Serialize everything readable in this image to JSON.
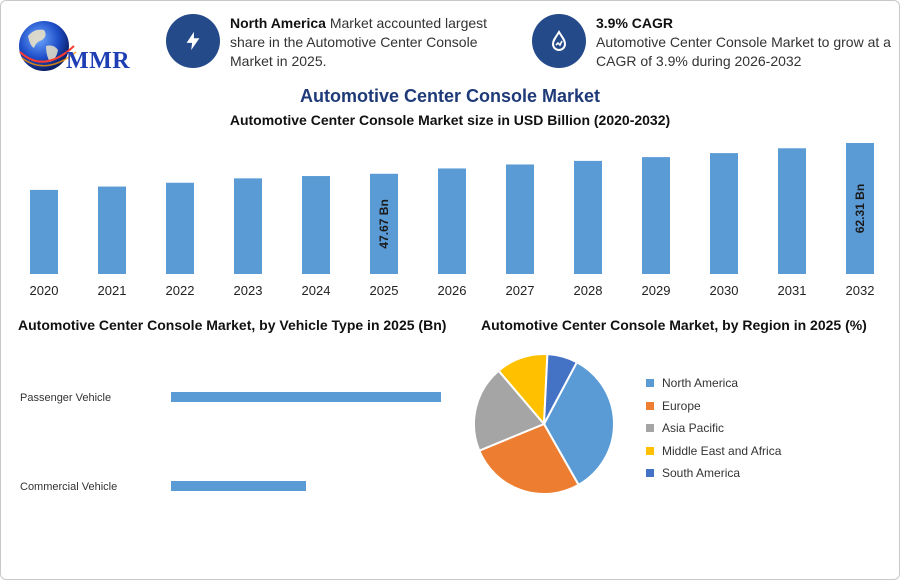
{
  "logo": {
    "text": "MMR"
  },
  "info_cards": [
    {
      "icon": "lightning-icon",
      "bold": "North America",
      "text": " Market accounted largest share in the Automotive Center Console Market in 2025."
    },
    {
      "icon": "growth-drop-icon",
      "bold": "3.9% CAGR",
      "text": "Automotive Center Console Market to grow at a CAGR of 3.9% during 2026-2032"
    }
  ],
  "colors": {
    "bar": "#5b9bd5",
    "icon_bg": "#244a8a",
    "title": "#1f3a78"
  },
  "chart_data": [
    {
      "type": "bar",
      "title": "Automotive Center Console Market",
      "subtitle": "Automotive Center Console Market size in USD Billion (2020-2032)",
      "categories": [
        "2020",
        "2021",
        "2022",
        "2023",
        "2024",
        "2025",
        "2026",
        "2027",
        "2028",
        "2029",
        "2030",
        "2031",
        "2032"
      ],
      "values": [
        40.0,
        41.6,
        43.4,
        45.5,
        46.6,
        47.67,
        50.2,
        52.1,
        53.8,
        55.6,
        57.5,
        59.8,
        62.31
      ],
      "data_labels": [
        {
          "index": 5,
          "text": "47.67 Bn"
        },
        {
          "index": 12,
          "text": "62.31 Bn"
        }
      ],
      "ylim": [
        0,
        65
      ],
      "xlabel": "",
      "ylabel": ""
    },
    {
      "type": "bar",
      "orientation": "horizontal",
      "title": "Automotive Center Console Market, by Vehicle Type in 2025 (Bn)",
      "categories": [
        "Passenger Vehicle",
        "Commercial Vehicle"
      ],
      "values": [
        32.0,
        16.0
      ],
      "xlim": [
        0,
        32
      ]
    },
    {
      "type": "pie",
      "title": "Automotive Center Console Market, by Region in 2025 (%)",
      "labels": [
        "North America",
        "Europe",
        "Asia Pacific",
        "Middle East and Africa",
        "South America"
      ],
      "values": [
        34,
        27,
        20,
        12,
        7
      ],
      "colors": [
        "#5b9bd5",
        "#ed7d31",
        "#a5a5a5",
        "#ffc000",
        "#4472c4"
      ]
    }
  ]
}
